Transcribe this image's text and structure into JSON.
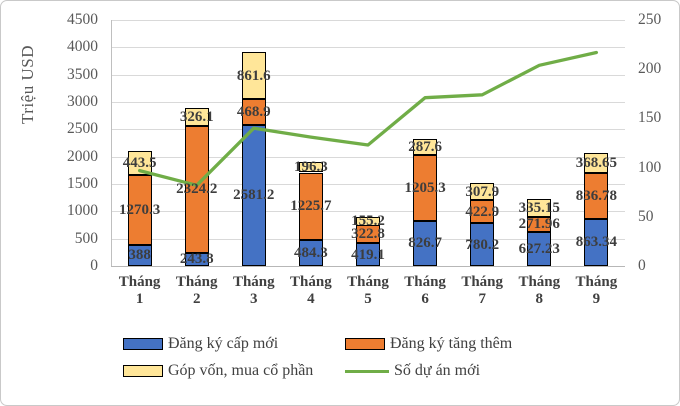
{
  "chart_data": {
    "type": "bar",
    "subtype": "stacked-bar-with-line",
    "title": "",
    "y_left": {
      "title": "Triệu USD",
      "min": 0,
      "max": 4500,
      "step": 500,
      "ticks": [
        4500,
        4000,
        3500,
        3000,
        2500,
        2000,
        1500,
        1000,
        500,
        0
      ]
    },
    "y_right": {
      "title": "",
      "min": 0,
      "max": 250,
      "step": 50,
      "ticks": [
        250,
        200,
        150,
        100,
        50,
        0
      ]
    },
    "grid": "horizontal",
    "legend_position": "bottom",
    "categories": [
      "Tháng 1",
      "Tháng 2",
      "Tháng 3",
      "Tháng 4",
      "Tháng 5",
      "Tháng 6",
      "Tháng 7",
      "Tháng 8",
      "Tháng 9"
    ],
    "series": [
      {
        "name": "Đăng ký cấp mới",
        "type": "bar",
        "axis": "left",
        "color": "#4472C4",
        "values": [
          388,
          243.8,
          2581.2,
          484.3,
          419.1,
          826.7,
          780.2,
          627.23,
          863.34
        ]
      },
      {
        "name": "Đăng ký tăng thêm",
        "type": "bar",
        "axis": "left",
        "color": "#ED7D31",
        "values": [
          1270.3,
          2324.2,
          468.9,
          1225.7,
          322.8,
          1205.3,
          422.9,
          271.96,
          836.78
        ]
      },
      {
        "name": "Góp vốn, mua cổ phần",
        "type": "bar",
        "axis": "left",
        "color": "#FFE699",
        "values": [
          443.5,
          326.1,
          861.6,
          196.3,
          155.2,
          287.6,
          307.9,
          335.15,
          368.65
        ]
      },
      {
        "name": "Số dự án mới",
        "type": "line",
        "axis": "right",
        "color": "#70AD47",
        "values": [
          97,
          82,
          140,
          131,
          123,
          171,
          174,
          204,
          217
        ]
      }
    ],
    "colors": {
      "gridline": "#d9d9d9",
      "axis_line": "#bfbfbf",
      "axis_text": "#595959",
      "data_label_text": "#3d3d3d",
      "bar_border": "#000000"
    }
  }
}
